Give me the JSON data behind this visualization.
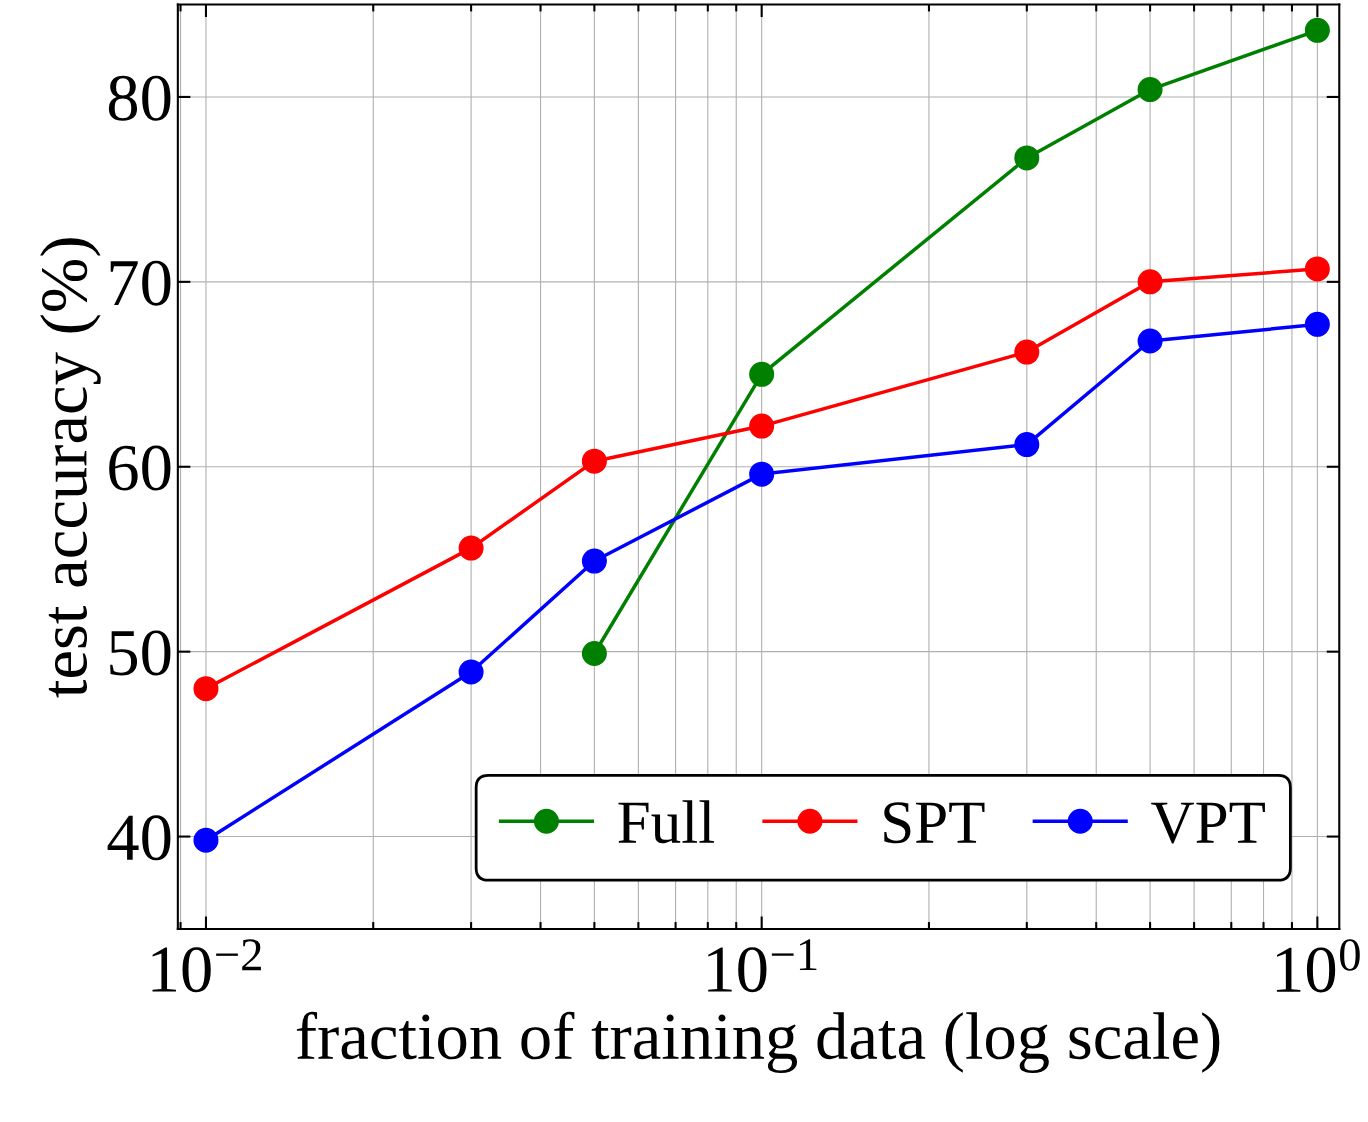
{
  "chart_data": {
    "type": "line",
    "xlabel": "fraction of training data (log scale)",
    "ylabel": "test accuracy (%)",
    "x": [
      0.01,
      0.03,
      0.05,
      0.1,
      0.3,
      0.5,
      1.0
    ],
    "series": [
      {
        "name": "Full",
        "color": "#008000",
        "values": [
          null,
          null,
          49.9,
          65.0,
          76.7,
          80.4,
          83.6
        ]
      },
      {
        "name": "SPT",
        "color": "#ff0000",
        "values": [
          48.0,
          55.6,
          60.3,
          62.2,
          66.2,
          70.0,
          70.7
        ]
      },
      {
        "name": "VPT",
        "color": "#0000ff",
        "values": [
          39.8,
          48.9,
          54.9,
          59.6,
          61.2,
          66.8,
          67.7
        ]
      }
    ],
    "log": "x",
    "xlim": [
      0.0089,
      1.095
    ],
    "ylim": [
      35,
      85
    ],
    "xticks": [
      {
        "value": 0.01,
        "label": "10$^{−2}$"
      },
      {
        "value": 0.1,
        "label": "10$^{−1}$"
      },
      {
        "value": 1,
        "label": "10$^{0}$"
      }
    ],
    "yticks": [
      40,
      50,
      60,
      70,
      80
    ],
    "grid": true,
    "legend": "bottom right",
    "marker": "circle",
    "line_style": "solid"
  }
}
